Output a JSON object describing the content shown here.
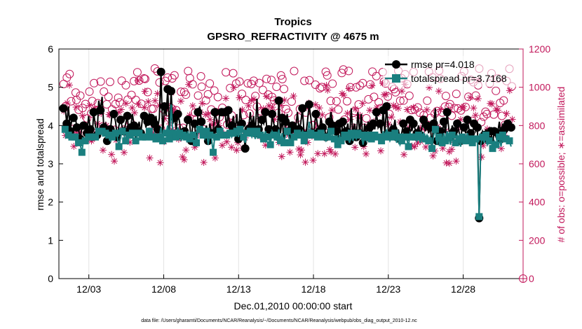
{
  "chart_data": {
    "type": "line",
    "title": "Tropics",
    "subtitle": "GPSRO_REFRACTIVITY @ 4675 m",
    "xlabel": "Dec.01,2010 00:00:00 start",
    "ylabel": "rmse and totalspread",
    "ylabel_right": "# of obs: o=possible; ∗=assimilated",
    "footnote": "data file: /Users/gharamti/Documents/NCAR/Reanalysis/~/Documents/NCAR/Reanalysis/webpub/obs_diag_output_2010-12.nc",
    "xlim": [
      1,
      32
    ],
    "ylim": [
      0,
      6
    ],
    "ylim_right": [
      0,
      1200
    ],
    "x_ticks": [
      3,
      8,
      13,
      18,
      23,
      28
    ],
    "x_tick_labels": [
      "12/03",
      "12/08",
      "12/13",
      "12/18",
      "12/23",
      "12/28"
    ],
    "y_ticks": [
      "0",
      "1",
      "2",
      "3",
      "4",
      "5",
      "6"
    ],
    "y_ticks_right": [
      "0",
      "200",
      "400",
      "600",
      "800",
      "1000",
      "1200"
    ],
    "legend": [
      {
        "name": "rmse",
        "label": "rmse pr=4.018",
        "color": "#000000"
      },
      {
        "name": "totalspread",
        "label": "totalspread pr=3.7168",
        "color": "#1a7f7f"
      }
    ],
    "series": [
      {
        "name": "rmse",
        "color": "#000000",
        "values": [
          4.45,
          4.5,
          4.05,
          4.5,
          3.85,
          4.15,
          4.2,
          4.25,
          3.95,
          3.9,
          3.65,
          3.95,
          4.0,
          4.05,
          3.8,
          4.25,
          3.9,
          3.6,
          4.35,
          4.0,
          3.75,
          4.65,
          4.4,
          4.75,
          3.95,
          4.05,
          3.6,
          3.75,
          3.9,
          4.35,
          4.3,
          4.1,
          3.7,
          4.0,
          4.15,
          3.95,
          3.85,
          4.05,
          4.25,
          3.75,
          3.95,
          4.3,
          4.0,
          3.65,
          3.85,
          4.1,
          3.8,
          4.2,
          4.25,
          3.95,
          4.1,
          4.3,
          4.2,
          3.95,
          4.05,
          4.25,
          3.9,
          4.2,
          5.4,
          3.7,
          4.5,
          4.25,
          4.95,
          3.85,
          4.9,
          4.05,
          4.2,
          3.9,
          4.3,
          4.1,
          3.75,
          3.8,
          3.85,
          3.95,
          4.15,
          4.05,
          3.6,
          4.1,
          4.05,
          3.45,
          4.35,
          4.5,
          4.1,
          3.85,
          3.8,
          4.0,
          3.6,
          4.05,
          3.8,
          3.85,
          4.35,
          4.15,
          3.9,
          4.4,
          4.35,
          4.3,
          4.35,
          3.95,
          4.4,
          3.75,
          4.0,
          4.25,
          3.85,
          4.3,
          3.65,
          4.45,
          4.05,
          3.85,
          3.4,
          4.0,
          3.9,
          4.35,
          4.0,
          4.25,
          3.8,
          4.7,
          3.9,
          3.8,
          4.15,
          4.05,
          4.35,
          3.85,
          3.9,
          3.5,
          4.3,
          4.05,
          3.9,
          3.6,
          4.65,
          3.8,
          4.2,
          3.55,
          4.1,
          4.3,
          3.85,
          3.65,
          4.0,
          3.85,
          3.9,
          4.35,
          3.9,
          4.05,
          4.45,
          3.8,
          3.75,
          4.1,
          4.55,
          4.2,
          3.8,
          3.9,
          4.3,
          4.0,
          3.85,
          4.2,
          3.95,
          4.0,
          3.7,
          3.85,
          4.1,
          4.35,
          4.0,
          3.8,
          3.85,
          3.55,
          4.05,
          3.7,
          4.1,
          3.95,
          3.85,
          4.05,
          3.6,
          4.45,
          3.75,
          4.05,
          3.7,
          4.35,
          3.8,
          4.3,
          3.55,
          4.05,
          3.7,
          4.1,
          3.95,
          3.85,
          4.05,
          3.9,
          4.35,
          3.95,
          4.05,
          3.8,
          4.4,
          3.8,
          4.5,
          3.9,
          3.75,
          4.0,
          3.9,
          4.15,
          3.7,
          3.9,
          3.65,
          3.8,
          4.05,
          3.95,
          3.85,
          3.6,
          4.15,
          3.85,
          4.05,
          3.9,
          3.8,
          4.0,
          3.75,
          3.95,
          4.15,
          3.85,
          4.0,
          3.8,
          3.95,
          3.5,
          4.05,
          4.45,
          3.6,
          3.95,
          3.85,
          3.75,
          4.1,
          3.8,
          4.35,
          3.9,
          3.7,
          4.0,
          3.85,
          3.7,
          4.05,
          3.85,
          3.6,
          4.0,
          3.95,
          3.8,
          4.15,
          3.9,
          3.8,
          3.75,
          4.05,
          3.85,
          3.95,
          1.58,
          3.6,
          3.85,
          3.75,
          3.9,
          3.65,
          3.8,
          3.85,
          3.55,
          3.85,
          3.7,
          3.8,
          4.1,
          3.65,
          4.05,
          3.9,
          3.95,
          4.05,
          3.9,
          3.95
        ]
      },
      {
        "name": "totalspread",
        "color": "#1a7f7f",
        "values": [
          3.95,
          3.9,
          3.85,
          3.75,
          3.8,
          3.7,
          3.65,
          3.7,
          3.6,
          3.55,
          3.5,
          3.3,
          3.65,
          3.6,
          3.75,
          3.7,
          3.65,
          3.7,
          3.75,
          3.7,
          3.65,
          3.85,
          3.8,
          3.85,
          3.75,
          3.8,
          3.85,
          3.75,
          3.6,
          3.7,
          3.75,
          3.8,
          3.7,
          3.45,
          3.7,
          3.85,
          3.75,
          3.6,
          3.65,
          3.75,
          3.7,
          3.8,
          3.55,
          3.6,
          3.75,
          3.8,
          3.65,
          3.7,
          3.75,
          3.7,
          3.9,
          3.85,
          3.75,
          3.7,
          3.8,
          3.65,
          3.75,
          3.7,
          3.95,
          3.6,
          3.85,
          3.8,
          4.0,
          3.65,
          4.55,
          3.8,
          3.85,
          3.7,
          3.95,
          3.8,
          3.6,
          3.75,
          3.8,
          3.7,
          3.85,
          3.65,
          3.7,
          3.75,
          3.8,
          3.55,
          3.85,
          3.9,
          3.7,
          3.75,
          3.65,
          3.85,
          3.5,
          3.75,
          3.65,
          3.3,
          3.75,
          3.7,
          3.75,
          3.85,
          3.9,
          3.75,
          3.8,
          3.75,
          3.85,
          3.8,
          3.7,
          3.8,
          3.75,
          3.85,
          3.7,
          3.9,
          3.75,
          3.7,
          3.55,
          3.8,
          3.75,
          3.85,
          3.7,
          3.8,
          3.65,
          3.85,
          3.7,
          3.75,
          3.8,
          3.65,
          3.85,
          3.7,
          3.75,
          3.5,
          3.85,
          3.75,
          3.65,
          3.7,
          3.9,
          3.6,
          3.8,
          3.55,
          3.75,
          3.85,
          3.7,
          3.55,
          3.75,
          3.7,
          3.65,
          3.8,
          3.7,
          3.75,
          3.85,
          3.6,
          3.65,
          3.75,
          4.1,
          3.8,
          3.7,
          3.75,
          3.8,
          3.7,
          3.65,
          3.8,
          3.75,
          3.7,
          3.6,
          3.7,
          3.75,
          3.85,
          3.7,
          3.65,
          3.7,
          3.5,
          3.75,
          3.6,
          3.7,
          3.75,
          3.65,
          3.7,
          3.55,
          3.8,
          3.6,
          3.75,
          3.65,
          3.8,
          3.7,
          3.75,
          3.5,
          3.7,
          3.6,
          3.75,
          3.7,
          3.65,
          3.7,
          3.75,
          3.8,
          3.7,
          3.75,
          3.6,
          3.85,
          3.7,
          3.9,
          3.75,
          3.6,
          3.7,
          3.75,
          3.8,
          3.55,
          3.7,
          3.5,
          3.6,
          3.75,
          3.7,
          3.65,
          3.45,
          3.8,
          3.7,
          3.75,
          3.7,
          3.6,
          3.75,
          3.55,
          3.7,
          3.8,
          3.65,
          3.75,
          3.6,
          3.7,
          3.4,
          3.75,
          3.9,
          3.5,
          3.7,
          3.65,
          3.55,
          3.8,
          3.6,
          3.85,
          3.7,
          3.5,
          3.75,
          3.6,
          3.55,
          3.75,
          3.65,
          3.45,
          3.7,
          3.75,
          3.6,
          3.8,
          3.65,
          3.6,
          3.55,
          3.7,
          3.65,
          3.55,
          1.62,
          3.5,
          3.7,
          3.55,
          3.75,
          3.5,
          3.6,
          3.65,
          3.4,
          3.6,
          3.5,
          3.65,
          3.7,
          3.45,
          3.75,
          3.6,
          3.65,
          3.7,
          3.6,
          3.45
        ]
      }
    ]
  }
}
